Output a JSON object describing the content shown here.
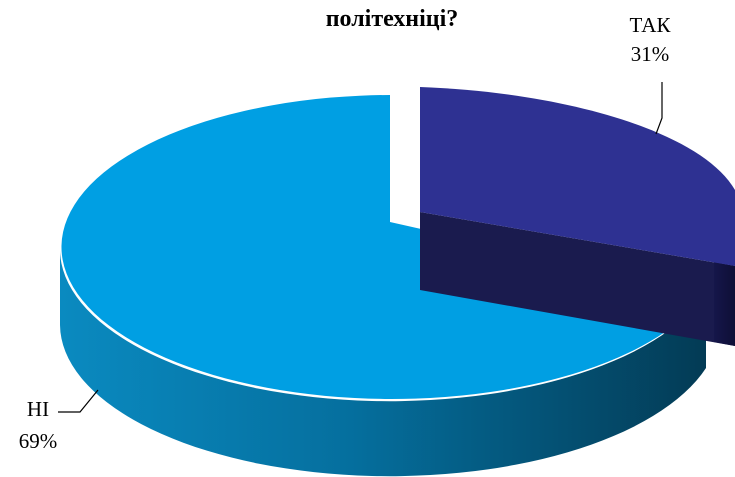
{
  "chart_data": {
    "type": "pie",
    "title": "політехніці?",
    "slices": [
      {
        "label": "ТАК",
        "percent_label": "31%",
        "value": 31,
        "color": "#2e3192",
        "side_color": "#1b1c55"
      },
      {
        "label": "НІ",
        "percent_label": "69%",
        "value": 69,
        "color": "#009fe3",
        "side_color": "#04597f"
      }
    ],
    "style": "3d-exploded-pie"
  }
}
